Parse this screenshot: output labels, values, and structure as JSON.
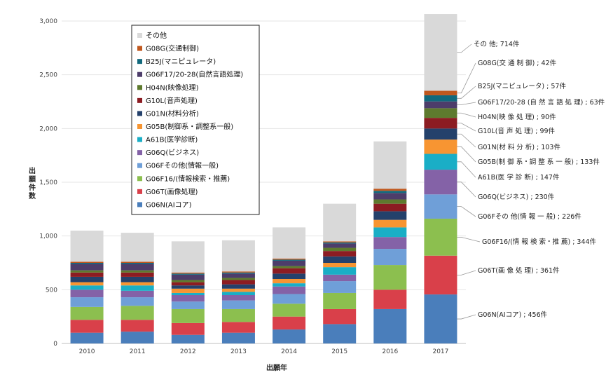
{
  "chart_data": {
    "type": "bar",
    "stacked": true,
    "title": "",
    "xlabel": "出願年",
    "ylabel": "出願件数",
    "ylim": [
      0,
      3000
    ],
    "yticks": [
      "0",
      "500",
      "1,000",
      "1,500",
      "2,000",
      "2,500",
      "3,000"
    ],
    "grid": true,
    "legend": "top-left inside",
    "categories": [
      "2010",
      "2011",
      "2012",
      "2013",
      "2014",
      "2015",
      "2016",
      "2017"
    ],
    "series": [
      {
        "name": "G06N(AIコア)",
        "color": "#4a7ebb",
        "values": [
          100,
          110,
          80,
          100,
          130,
          180,
          320,
          456
        ]
      },
      {
        "name": "G06T(画像処理)",
        "color": "#d9404a",
        "values": [
          120,
          110,
          110,
          100,
          120,
          140,
          180,
          361
        ]
      },
      {
        "name": "G06F16/(情報検索・推薦)",
        "color": "#8cbf4f",
        "values": [
          120,
          130,
          130,
          120,
          120,
          150,
          230,
          344
        ]
      },
      {
        "name": "G06Fその他(情報一般)",
        "color": "#6f9fd8",
        "values": [
          90,
          80,
          70,
          80,
          90,
          110,
          150,
          226
        ]
      },
      {
        "name": "G06Q(ビジネス)",
        "color": "#8462a7",
        "values": [
          70,
          60,
          60,
          50,
          70,
          60,
          110,
          230
        ]
      },
      {
        "name": "A61B(医学診断)",
        "color": "#1aaec6",
        "values": [
          40,
          50,
          20,
          30,
          30,
          70,
          90,
          147
        ]
      },
      {
        "name": "G05B(制御系・調整系一般)",
        "color": "#f79532",
        "values": [
          30,
          30,
          40,
          30,
          40,
          40,
          70,
          133
        ]
      },
      {
        "name": "G01N(材料分析)",
        "color": "#24416b",
        "values": [
          50,
          50,
          30,
          40,
          50,
          60,
          80,
          103
        ]
      },
      {
        "name": "G10L(音声処理)",
        "color": "#8c1c22",
        "values": [
          40,
          40,
          30,
          40,
          50,
          50,
          70,
          99
        ]
      },
      {
        "name": "H04N(映像処理)",
        "color": "#5e7a2e",
        "values": [
          20,
          20,
          20,
          20,
          20,
          30,
          40,
          90
        ]
      },
      {
        "name": "G06F17/20-28(自然言語処理)",
        "color": "#4d3d6a",
        "values": [
          60,
          60,
          50,
          40,
          50,
          40,
          60,
          63
        ]
      },
      {
        "name": "B25J(マニピュレータ)",
        "color": "#11697d",
        "values": [
          10,
          10,
          10,
          10,
          10,
          10,
          20,
          57
        ]
      },
      {
        "name": "G08G(交通制御)",
        "color": "#c0581f",
        "values": [
          10,
          10,
          10,
          10,
          10,
          10,
          20,
          42
        ]
      },
      {
        "name": "その他",
        "color": "#d9d9d9",
        "values": [
          290,
          270,
          290,
          290,
          290,
          350,
          440,
          714
        ]
      }
    ],
    "annotations": [
      "その 他; 714件",
      "G08G(交 通 制 御) ; 42件",
      "B25J(マニピュレータ) ; 57件",
      "G06F17/20-28 (自 然 言 語 処 理) ; 63件",
      "H04N(映 像 処 理) ; 90件",
      "G10L(音 声 処 理) ; 99件",
      "G01N(材 料 分 析) ; 103件",
      "G05B(制 御 系・調 整 系 一 般) ; 133件",
      "A61B(医 学 診 断) ; 147件",
      "G06Q(ビジネス) ; 230件",
      "G06Fその 他(情 報 一 般) ; 226件",
      "G06F16/(情 報 検 索・推 薦) ; 344件",
      "G06T(画 像 処 理) ; 361件",
      "G06N(AIコア) ; 456件"
    ]
  }
}
